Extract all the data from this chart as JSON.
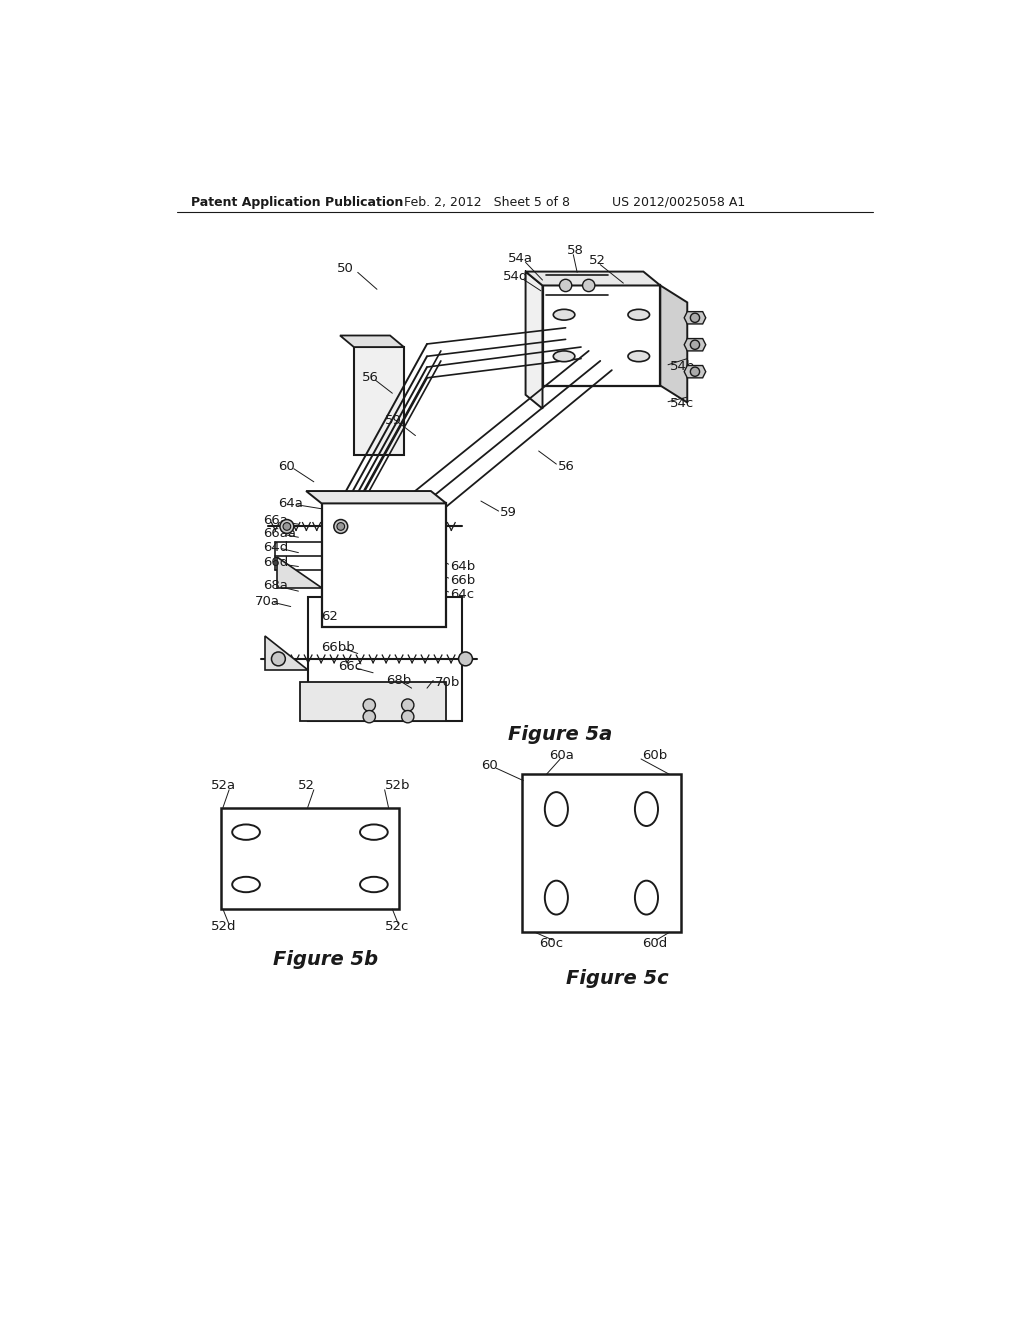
{
  "bg_color": "#ffffff",
  "header_left": "Patent Application Publication",
  "header_mid": "Feb. 2, 2012   Sheet 5 of 8",
  "header_right": "US 2012/0025058 A1",
  "fig5a_caption": "Figure 5a",
  "fig5b_caption": "Figure 5b",
  "fig5c_caption": "Figure 5c",
  "line_color": "#1a1a1a",
  "lw": 1.3
}
